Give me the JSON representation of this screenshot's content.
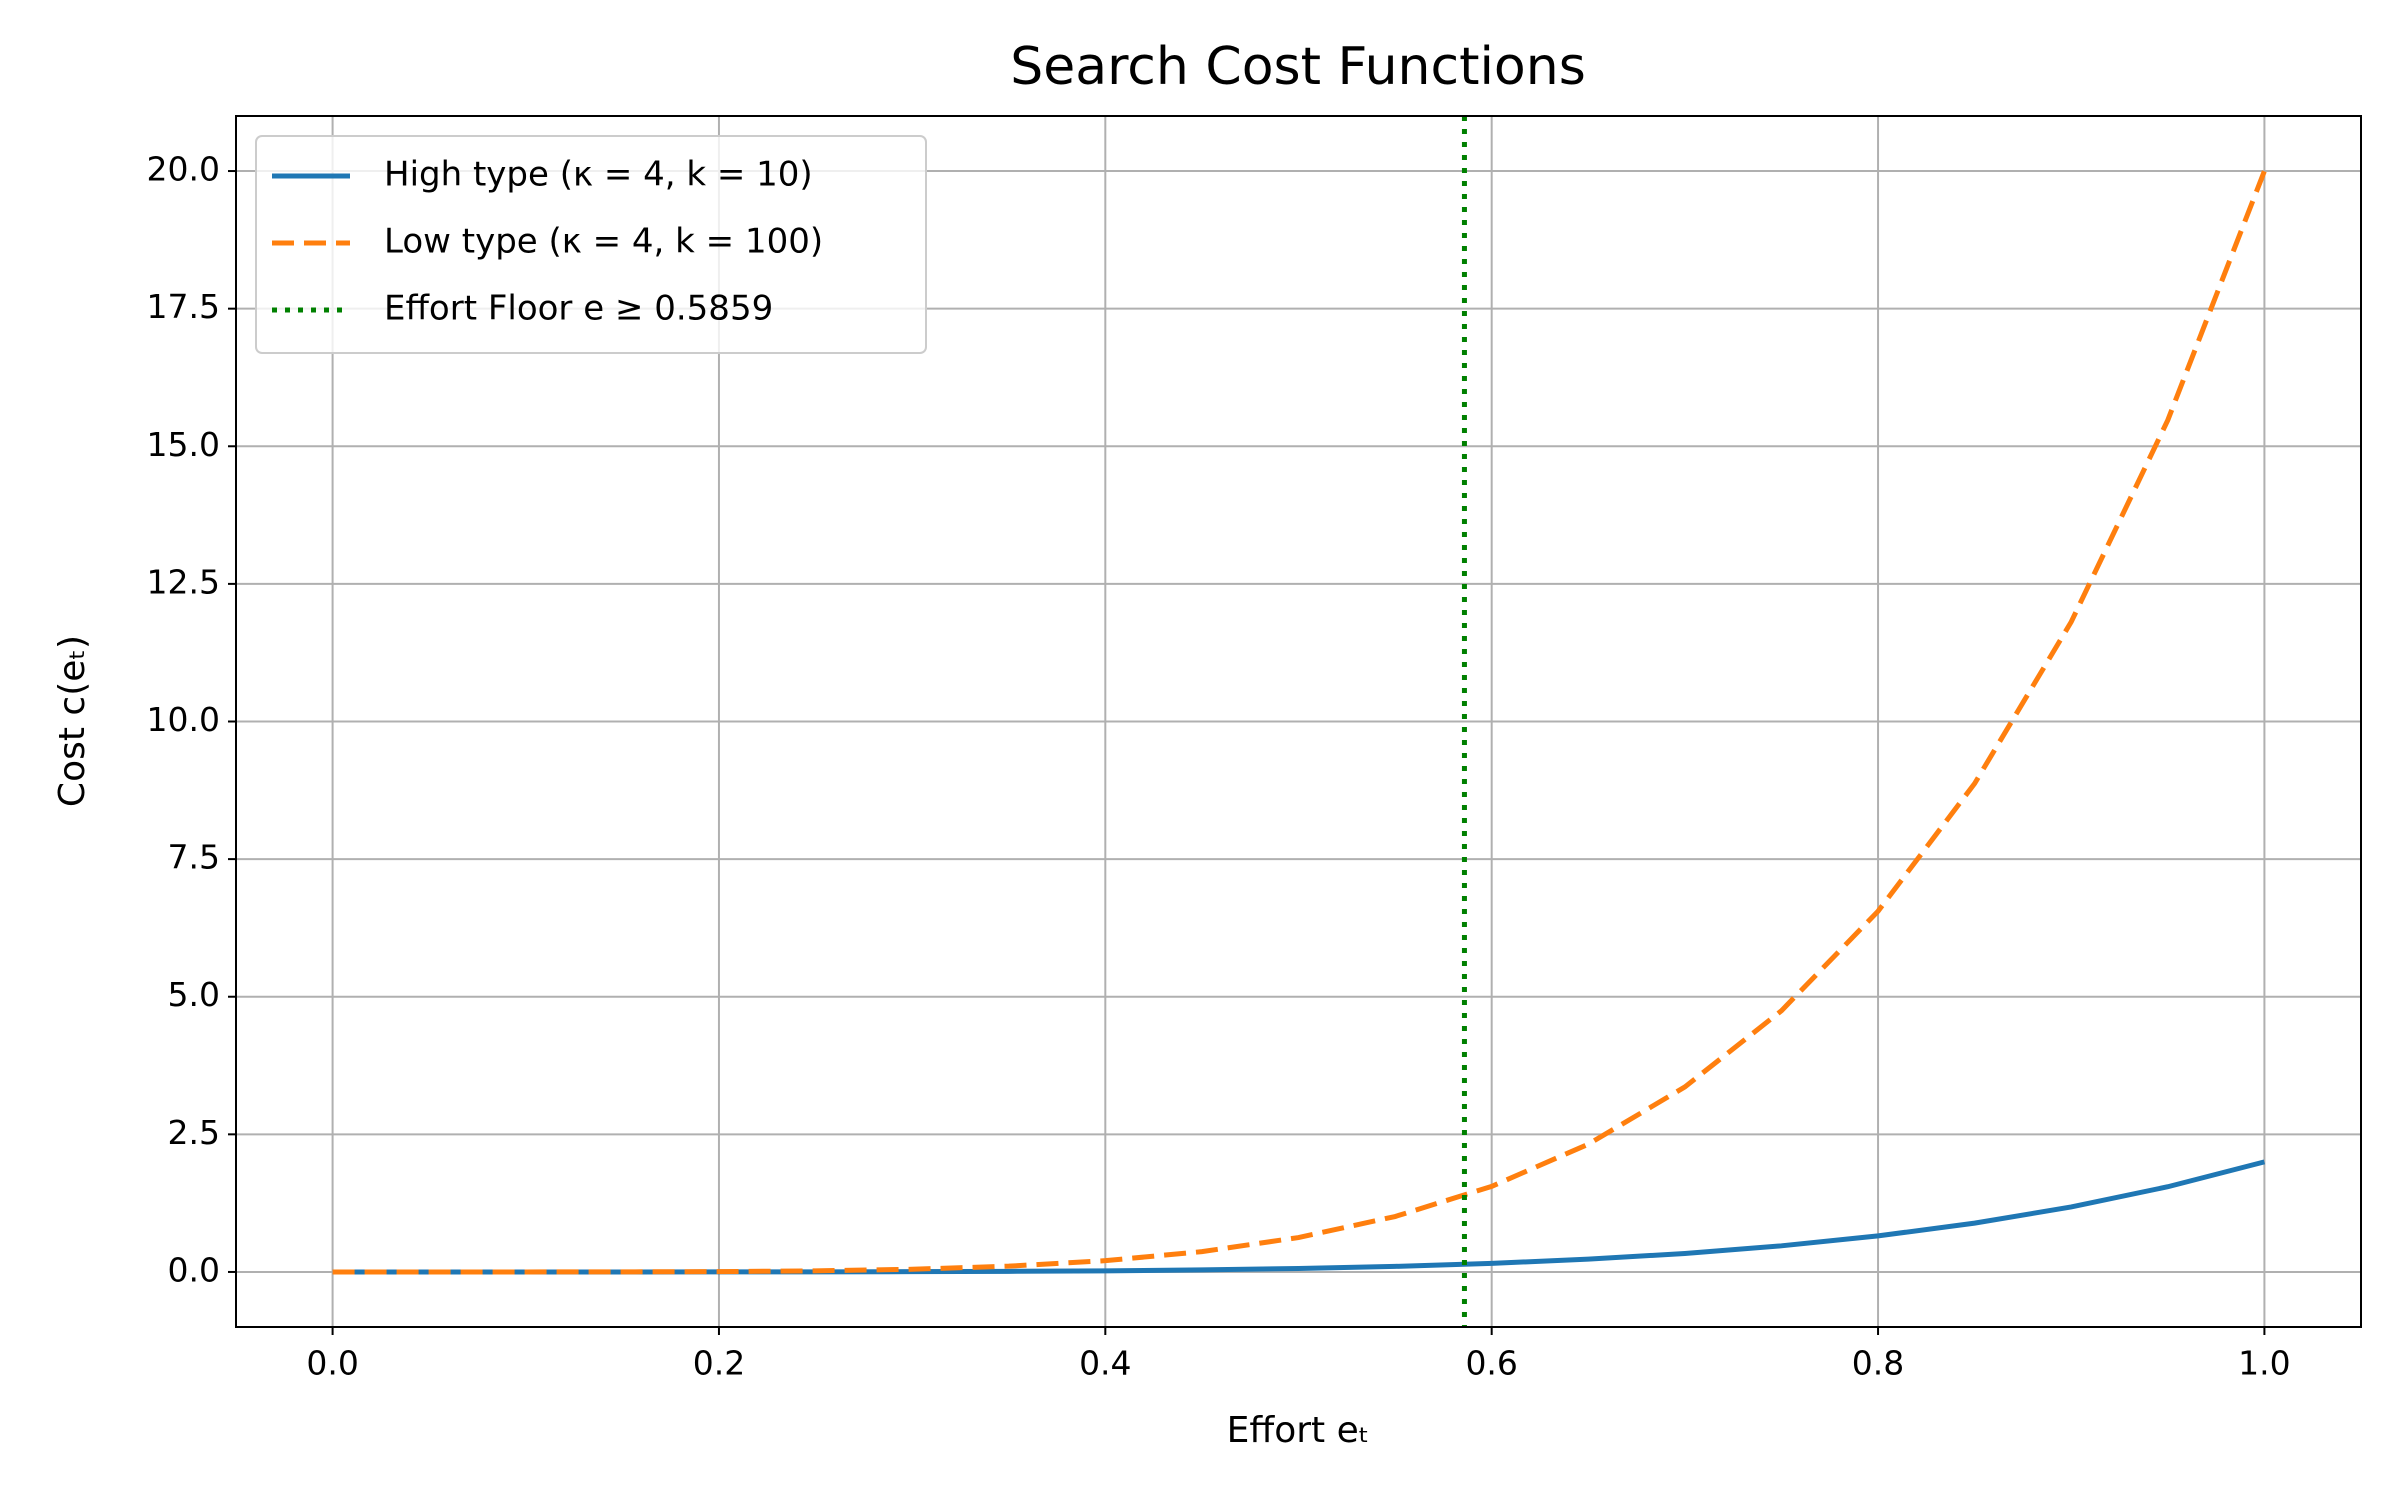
{
  "chart_data": {
    "type": "line",
    "title": "Search Cost Functions",
    "xlabel": "Effort eₜ",
    "ylabel": "Cost c(eₜ)",
    "x": [
      0,
      0.05,
      0.1,
      0.15,
      0.2,
      0.25,
      0.3,
      0.35,
      0.4,
      0.45,
      0.5,
      0.55,
      0.6,
      0.65,
      0.7,
      0.75,
      0.8,
      0.85,
      0.9,
      0.95,
      1
    ],
    "series": [
      {
        "name": "High type (κ = 4, k = 10)",
        "color": "#1f77b4",
        "linestyle": "solid",
        "values": [
          0,
          0,
          0,
          0,
          0.001,
          0.002,
          0.005,
          0.011,
          0.02,
          0.037,
          0.063,
          0.101,
          0.156,
          0.232,
          0.336,
          0.475,
          0.655,
          0.887,
          1.181,
          1.548,
          2
        ]
      },
      {
        "name": "Low type (κ = 4, k = 100)",
        "color": "#ff7f0e",
        "linestyle": "dashed",
        "values": [
          0,
          0,
          0,
          0.002,
          0.006,
          0.02,
          0.049,
          0.105,
          0.205,
          0.369,
          0.625,
          1.007,
          1.555,
          2.321,
          3.361,
          4.746,
          6.554,
          8.874,
          11.81,
          15.476,
          20
        ]
      }
    ],
    "vline": {
      "name": "Effort Floor e ≥  0.5859",
      "x": 0.5859,
      "color": "#008000",
      "linestyle": "dotted"
    },
    "xlim": [
      -0.05,
      1.05
    ],
    "ylim": [
      -1,
      21
    ],
    "xticks": [
      {
        "value": 0,
        "label": "0.0"
      },
      0.2,
      0.4,
      0.6,
      0.8,
      {
        "value": 1,
        "label": "1.0"
      }
    ],
    "yticks": [
      {
        "value": 0,
        "label": "0.0"
      },
      2.5,
      {
        "value": 5,
        "label": "5.0"
      },
      7.5,
      {
        "value": 10,
        "label": "10.0"
      },
      12.5,
      {
        "value": 15,
        "label": "15.0"
      },
      17.5,
      {
        "value": 20,
        "label": "20.0"
      }
    ],
    "grid": true,
    "legend": "upper left"
  }
}
